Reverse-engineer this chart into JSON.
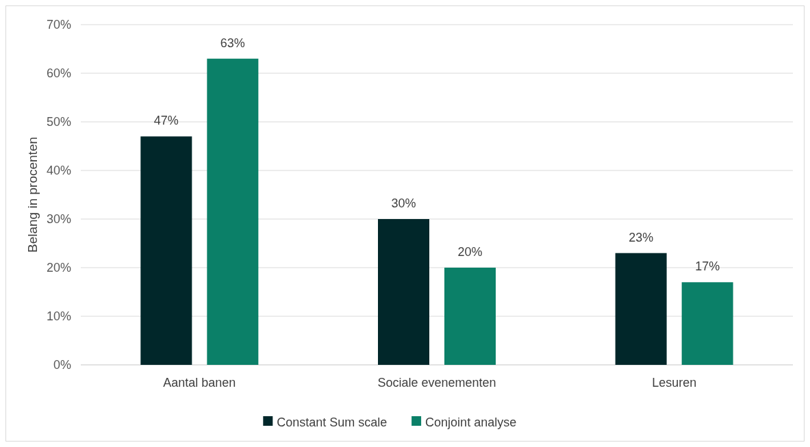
{
  "chart_data": {
    "type": "bar",
    "ylabel": "Belang in procenten",
    "categories": [
      "Aantal banen",
      "Sociale evenementen",
      "Lesuren"
    ],
    "series": [
      {
        "name": "Constant Sum scale",
        "color": "#01272a",
        "values": [
          47,
          30,
          23
        ]
      },
      {
        "name": "Conjoint analyse",
        "color": "#0b8068",
        "values": [
          63,
          20,
          17
        ]
      }
    ],
    "ylim": [
      0,
      70
    ],
    "yticks": [
      {
        "value": 0,
        "label": "0%"
      },
      {
        "value": 10,
        "label": "10%"
      },
      {
        "value": 20,
        "label": "20%"
      },
      {
        "value": 30,
        "label": "30%"
      },
      {
        "value": 40,
        "label": "40%"
      },
      {
        "value": 50,
        "label": "50%"
      },
      {
        "value": 60,
        "label": "60%"
      },
      {
        "value": 70,
        "label": "70%"
      }
    ],
    "value_labels": [
      [
        "47%",
        "30%",
        "23%"
      ],
      [
        "63%",
        "20%",
        "17%"
      ]
    ],
    "grid": "y",
    "legend": "bottom"
  }
}
